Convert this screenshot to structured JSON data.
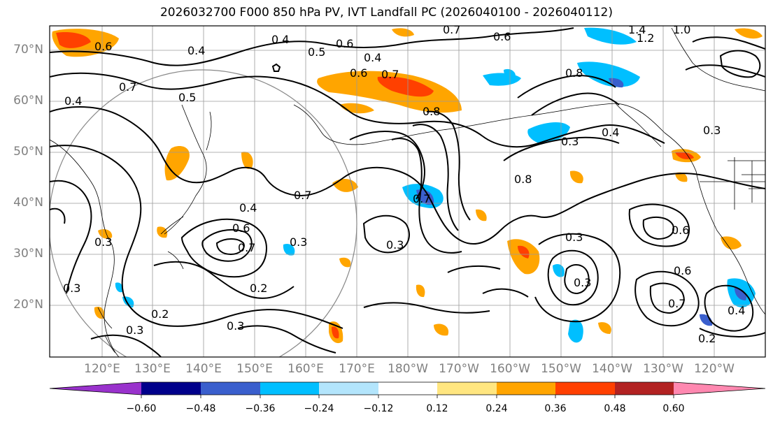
{
  "title": "2026032700 F000 850 hPa PV, IVT Landfall PC (2026040100 - 2026040112)",
  "map": {
    "lat_labels": [
      "70°N",
      "60°N",
      "50°N",
      "40°N",
      "30°N",
      "20°N"
    ],
    "lon_labels": [
      "120°E",
      "130°E",
      "140°E",
      "150°E",
      "160°E",
      "170°E",
      "180°W",
      "170°W",
      "160°W",
      "150°W",
      "140°W",
      "130°W",
      "120°W"
    ],
    "contour_labels": [
      "0.4",
      "0.6",
      "0.5",
      "0.4",
      "0.6",
      "0.7",
      "0.6",
      "0.6",
      "0.7",
      "0.8",
      "0.4",
      "0.7",
      "0.5",
      "0.4",
      "0.3",
      "0.7",
      "0.8",
      "0.3",
      "0.4",
      "0.3",
      "0.7",
      "0.8",
      "0.4",
      "0.3",
      "0.6",
      "0.7",
      "0.3",
      "0.2",
      "0.3",
      "0.2",
      "0.3",
      "0.3",
      "0.6",
      "0.7",
      "0.3",
      "0.3",
      "0.2",
      "0.6",
      "0.4",
      "1.4",
      "1.2",
      "1.0"
    ]
  },
  "colorbar": {
    "ticks": [
      "−0.60",
      "−0.48",
      "−0.36",
      "−0.24",
      "−0.12",
      "0.12",
      "0.24",
      "0.36",
      "0.48",
      "0.60"
    ],
    "colors": [
      "#9932cc",
      "#00008b",
      "#3a5fcd",
      "#00bfff",
      "#b3e5fc",
      "#ffffff",
      "#ffe680",
      "#ffa500",
      "#ff4000",
      "#b22222",
      "#ff88b0"
    ]
  }
}
